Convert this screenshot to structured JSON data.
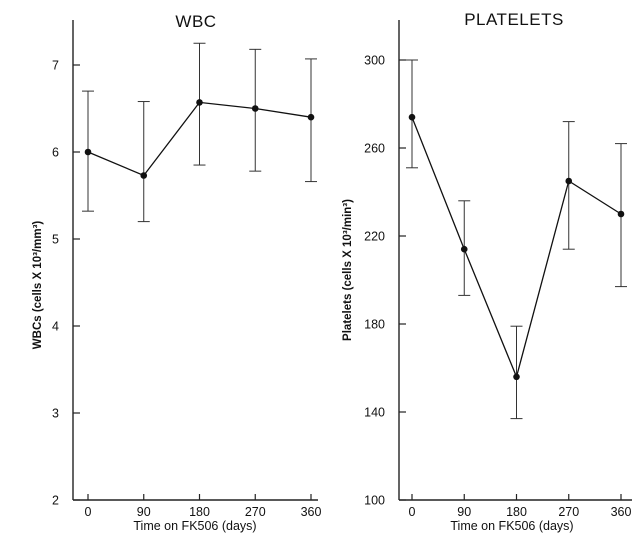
{
  "chart_data": [
    {
      "type": "line",
      "title": "WBC",
      "xlabel": "Time on FK506 (days)",
      "ylabel": "WBCs (cells X 10³/mm³)",
      "x": [
        0,
        90,
        180,
        270,
        360
      ],
      "xticks": [
        "0",
        "90",
        "180",
        "270",
        "360"
      ],
      "yticks": [
        "2",
        "3",
        "4",
        "5",
        "6",
        "7"
      ],
      "ylim": [
        2,
        7.5
      ],
      "series": [
        {
          "values": [
            6.0,
            5.73,
            6.57,
            6.5,
            6.4
          ],
          "err_low": [
            5.32,
            5.2,
            5.85,
            5.78,
            5.66
          ],
          "err_high": [
            6.7,
            6.58,
            7.25,
            7.18,
            7.07
          ]
        }
      ]
    },
    {
      "type": "line",
      "title": "PLATELETS",
      "xlabel": "Time on FK506 (days)",
      "ylabel": "Platelets (cells X 10³/min³)",
      "x": [
        0,
        90,
        180,
        270,
        360
      ],
      "xticks": [
        "0",
        "90",
        "180",
        "270",
        "360"
      ],
      "yticks": [
        "100",
        "140",
        "180",
        "220",
        "260",
        "300"
      ],
      "ylim": [
        100,
        320
      ],
      "series": [
        {
          "values": [
            274,
            214,
            156,
            245,
            230
          ],
          "err_low": [
            251,
            193,
            137,
            214,
            197
          ],
          "err_high": [
            300,
            236,
            179,
            272,
            262
          ]
        }
      ]
    }
  ]
}
